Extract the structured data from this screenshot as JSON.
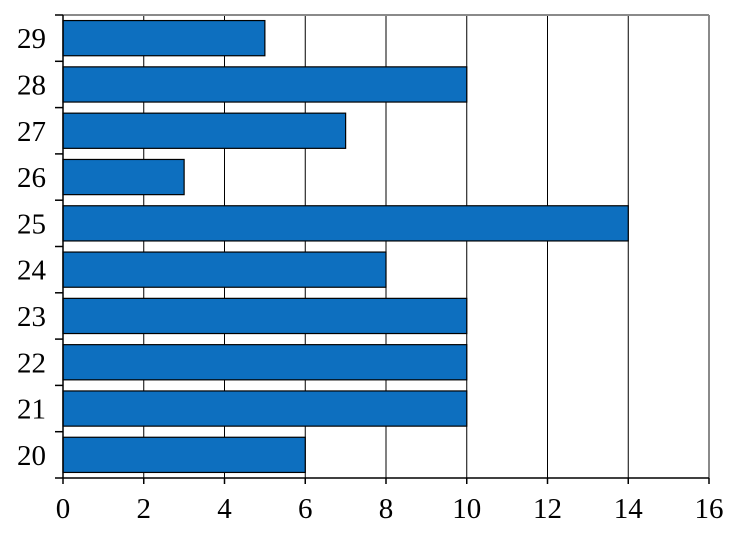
{
  "page": {
    "background": "#ffffff"
  },
  "chart_data": {
    "type": "bar",
    "orientation": "horizontal",
    "title": "",
    "subtitle": "",
    "xlabel": "",
    "ylabel": "",
    "categories": [
      "29",
      "28",
      "27",
      "26",
      "25",
      "24",
      "23",
      "22",
      "21",
      "20"
    ],
    "values": [
      5,
      10,
      7,
      3,
      14,
      8,
      10,
      10,
      10,
      6
    ],
    "xlim": [
      0,
      16
    ],
    "xticks": [
      0,
      2,
      4,
      6,
      8,
      10,
      12,
      14,
      16
    ],
    "grid": true,
    "legend_position": "none",
    "colors": {
      "bar_fill": "#0d6fbf",
      "bar_border": "#000000",
      "gridline": "#000000",
      "frame": "#8a8a8a",
      "axis": "#000000",
      "tick": "#000000",
      "text": "#000000",
      "plot_background": "#ffffff"
    }
  }
}
